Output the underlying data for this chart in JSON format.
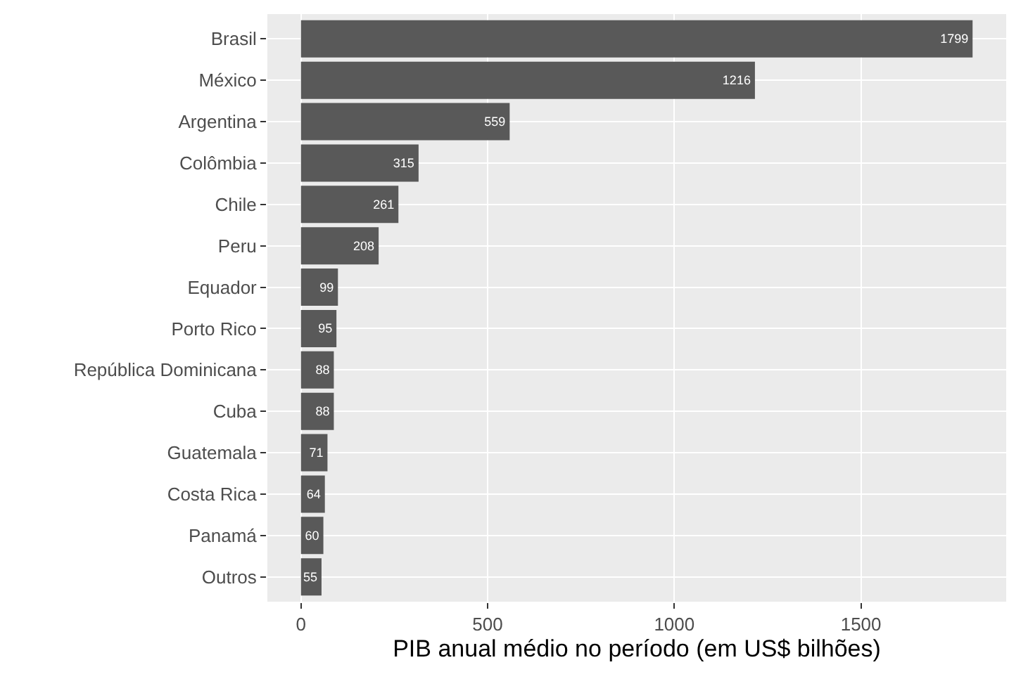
{
  "chart_data": {
    "type": "bar",
    "orientation": "horizontal",
    "xlabel": "PIB anual médio no período (em US$ bilhões)",
    "categories": [
      "Brasil",
      "México",
      "Argentina",
      "Colômbia",
      "Chile",
      "Peru",
      "Equador",
      "Porto Rico",
      "República Dominicana",
      "Cuba",
      "Guatemala",
      "Costa Rica",
      "Panamá",
      "Outros"
    ],
    "values": [
      1799,
      1216,
      559,
      315,
      261,
      208,
      99,
      95,
      88,
      88,
      71,
      64,
      60,
      55
    ],
    "color": "#595959",
    "xlim": [
      -90,
      1889
    ],
    "xticks": [
      0,
      500,
      1000,
      1500
    ],
    "grid": true,
    "data_labels": true
  }
}
